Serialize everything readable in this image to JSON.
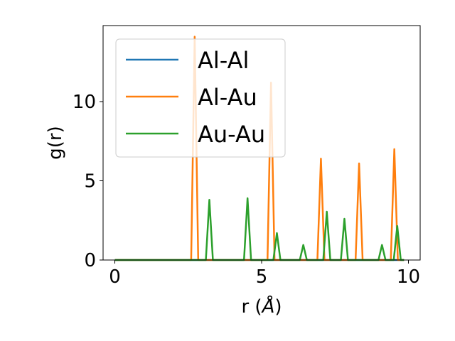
{
  "chart_data": {
    "type": "line",
    "xlabel": "r (",
    "xlabel_unit": "Å",
    "xlabel_close": ")",
    "ylabel": "g(r)",
    "xlim": [
      -0.4,
      10.4
    ],
    "ylim": [
      0,
      14.8
    ],
    "xticks": [
      0,
      5,
      10
    ],
    "yticks": [
      0,
      5,
      10
    ],
    "grid": false,
    "legend_position": "upper-left",
    "series": [
      {
        "name": "Al-Al",
        "color": "#1f77b4",
        "points": [
          [
            0,
            0
          ],
          [
            9.85,
            0
          ]
        ]
      },
      {
        "name": "Al-Au",
        "color": "#ff7f0e",
        "points": [
          [
            0,
            0
          ],
          [
            2.6,
            0
          ],
          [
            2.72,
            14.1
          ],
          [
            2.84,
            0
          ],
          [
            5.2,
            0
          ],
          [
            5.32,
            11.2
          ],
          [
            5.44,
            0
          ],
          [
            6.9,
            0
          ],
          [
            7.02,
            6.4
          ],
          [
            7.14,
            0
          ],
          [
            8.2,
            0
          ],
          [
            8.32,
            6.1
          ],
          [
            8.44,
            0
          ],
          [
            9.4,
            0
          ],
          [
            9.52,
            7.0
          ],
          [
            9.64,
            0
          ],
          [
            9.85,
            0
          ]
        ]
      },
      {
        "name": "Au-Au",
        "color": "#2ca02c",
        "points": [
          [
            0,
            0
          ],
          [
            3.1,
            0
          ],
          [
            3.22,
            3.8
          ],
          [
            3.34,
            0
          ],
          [
            4.4,
            0
          ],
          [
            4.52,
            3.9
          ],
          [
            4.64,
            0
          ],
          [
            5.4,
            0
          ],
          [
            5.52,
            1.7
          ],
          [
            5.64,
            0
          ],
          [
            6.3,
            0
          ],
          [
            6.42,
            0.95
          ],
          [
            6.54,
            0
          ],
          [
            7.1,
            0
          ],
          [
            7.22,
            3.05
          ],
          [
            7.34,
            0
          ],
          [
            7.7,
            0
          ],
          [
            7.82,
            2.6
          ],
          [
            7.94,
            0
          ],
          [
            8.98,
            0
          ],
          [
            9.1,
            0.95
          ],
          [
            9.22,
            0
          ],
          [
            9.5,
            0
          ],
          [
            9.62,
            2.15
          ],
          [
            9.74,
            0
          ],
          [
            9.85,
            0
          ]
        ]
      }
    ]
  }
}
